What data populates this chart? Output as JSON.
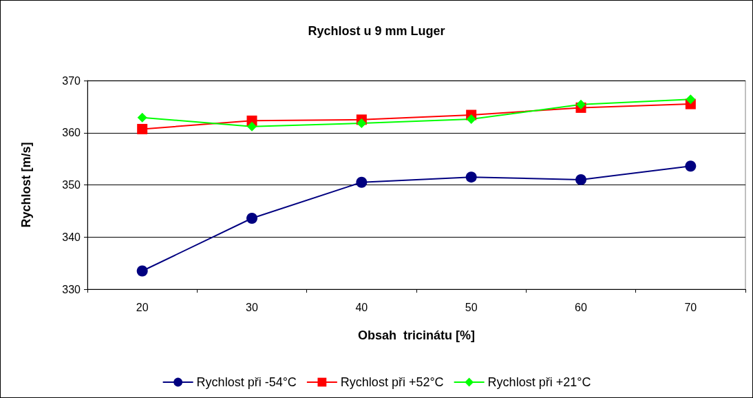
{
  "chart_data": {
    "type": "line",
    "title": "Rychlost u 9 mm Luger",
    "xlabel": "Obsah  tricinátu [%]",
    "ylabel": "Rychlost [m/s]",
    "categories": [
      "20",
      "30",
      "40",
      "50",
      "60",
      "70"
    ],
    "series": [
      {
        "name": "Rychlost při -54°C",
        "color": "#000080",
        "marker": "circle",
        "values": [
          333.5,
          343.6,
          350.5,
          351.5,
          351.0,
          353.6
        ]
      },
      {
        "name": "Rychlost při +52°C",
        "color": "#ff0000",
        "marker": "square",
        "values": [
          360.7,
          362.3,
          362.5,
          363.4,
          364.8,
          365.5
        ]
      },
      {
        "name": "Rychlost při +21°C",
        "color": "#00ff00",
        "marker": "diamond",
        "values": [
          362.9,
          361.2,
          361.8,
          362.6,
          365.4,
          366.4
        ]
      }
    ],
    "ylim": [
      330,
      370
    ],
    "yticks": [
      330,
      340,
      350,
      360,
      370
    ],
    "grid": "y",
    "legend": "bottom"
  }
}
